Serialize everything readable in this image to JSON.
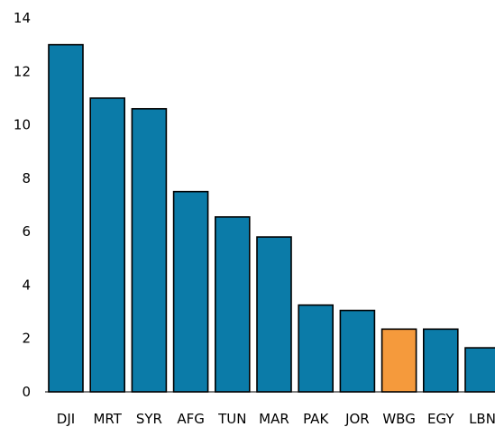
{
  "chart_data": {
    "type": "bar",
    "title": "",
    "xlabel": "",
    "ylabel": "",
    "categories": [
      "DJI",
      "MRT",
      "SYR",
      "AFG",
      "TUN",
      "MAR",
      "PAK",
      "JOR",
      "WBG",
      "EGY",
      "LBN"
    ],
    "values": [
      13.0,
      11.0,
      10.6,
      7.5,
      6.55,
      5.8,
      3.25,
      3.05,
      2.35,
      2.35,
      1.65
    ],
    "ylim": [
      0,
      14
    ],
    "yticks": [
      0,
      2,
      4,
      6,
      8,
      10,
      12,
      14
    ],
    "grid": false,
    "legend": "none",
    "colors": {
      "default": "#0b7ba8",
      "highlight": "#f59a3c",
      "highlight_category": "WBG"
    }
  }
}
